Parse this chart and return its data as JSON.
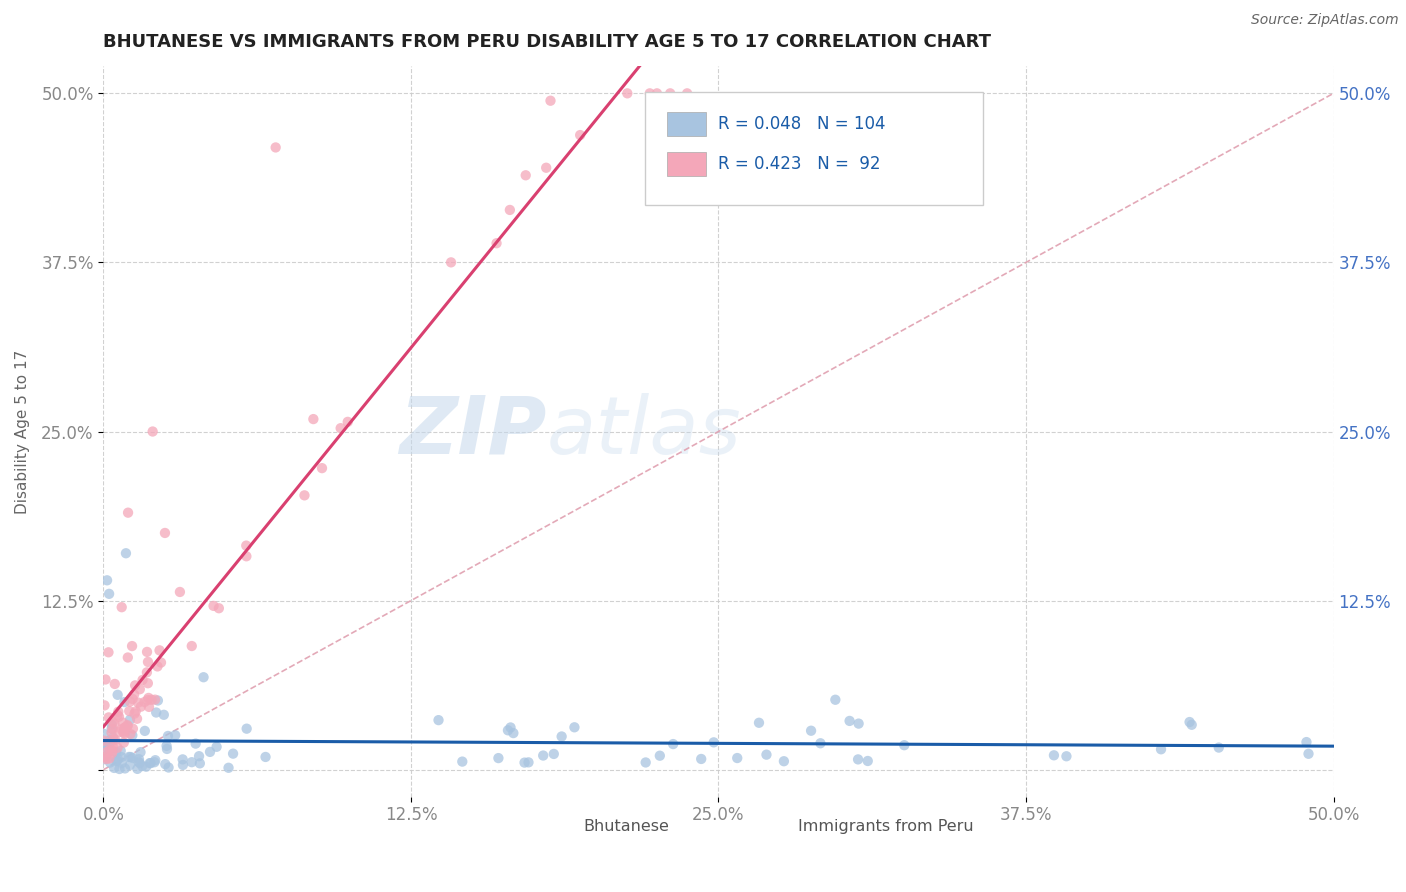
{
  "title": "BHUTANESE VS IMMIGRANTS FROM PERU DISABILITY AGE 5 TO 17 CORRELATION CHART",
  "source": "Source: ZipAtlas.com",
  "ylabel": "Disability Age 5 to 17",
  "xmin": 0.0,
  "xmax": 0.5,
  "ymin": -0.02,
  "ymax": 0.52,
  "xticks": [
    0.0,
    0.125,
    0.25,
    0.375,
    0.5
  ],
  "xticklabels": [
    "0.0%",
    "12.5%",
    "25.0%",
    "37.5%",
    "50.0%"
  ],
  "yticks": [
    0.0,
    0.125,
    0.25,
    0.375,
    0.5
  ],
  "yticklabels": [
    "",
    "12.5%",
    "25.0%",
    "37.5%",
    "50.0%"
  ],
  "legend_labels": [
    "Bhutanese",
    "Immigrants from Peru"
  ],
  "color_blue": "#a8c4e0",
  "color_pink": "#f4a7b9",
  "trendline_blue_color": "#1a5ca8",
  "trendline_pink_color": "#d94070",
  "trendline_dashed_color": "#e0a0b0",
  "R_blue": 0.048,
  "N_blue": 104,
  "R_pink": 0.423,
  "N_pink": 92,
  "background_color": "#ffffff",
  "grid_color": "#cccccc",
  "watermark_zip": "ZIP",
  "watermark_atlas": "atlas",
  "title_color": "#222222",
  "axis_label_color": "#666666",
  "tick_label_color": "#888888",
  "right_tick_color": "#4472c4",
  "legend_text_color": "#1a5ca8",
  "legend_N_color": "#333333"
}
